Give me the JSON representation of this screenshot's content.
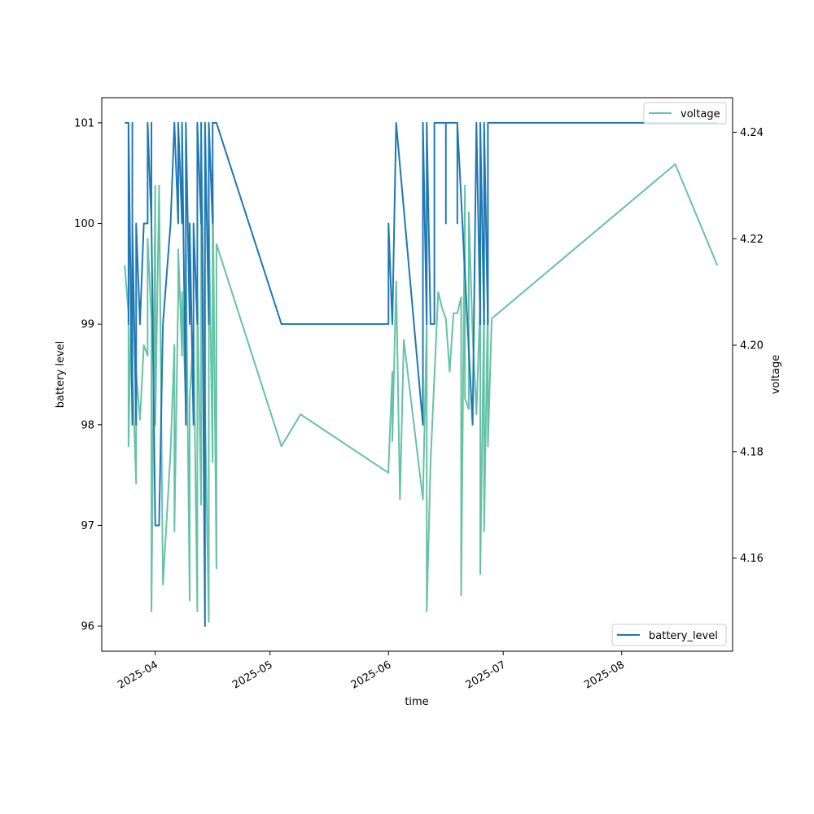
{
  "chart_data": {
    "type": "line",
    "title": "",
    "xlabel": "time",
    "ylabel_left": "battery level",
    "ylabel_right": "voltage",
    "x_ticks": [
      "2025-04",
      "2025-05",
      "2025-06",
      "2025-07",
      "2025-08"
    ],
    "y_left_ticks": [
      "96",
      "97",
      "98",
      "99",
      "100",
      "101"
    ],
    "y_right_ticks": [
      "4.16",
      "4.18",
      "4.20",
      "4.22",
      "4.24"
    ],
    "xlim": [
      "2025-03-18",
      "2025-08-30"
    ],
    "ylim_left": [
      95.75,
      101.25
    ],
    "ylim_right": [
      4.1425,
      4.2465
    ],
    "grid": false,
    "series": [
      {
        "name": "battery_level",
        "axis": "left",
        "color": "#1f77b4",
        "legend": "bottom-right",
        "points": [
          [
            "2025-03-24",
            101
          ],
          [
            "2025-03-25",
            101
          ],
          [
            "2025-03-25",
            99
          ],
          [
            "2025-03-25",
            101
          ],
          [
            "2025-03-26",
            98
          ],
          [
            "2025-03-26",
            101
          ],
          [
            "2025-03-26",
            100
          ],
          [
            "2025-03-27",
            98
          ],
          [
            "2025-03-27",
            100
          ],
          [
            "2025-03-28",
            99
          ],
          [
            "2025-03-29",
            100
          ],
          [
            "2025-03-30",
            100
          ],
          [
            "2025-03-30",
            101
          ],
          [
            "2025-03-31",
            100
          ],
          [
            "2025-03-31",
            101
          ],
          [
            "2025-03-31",
            100
          ],
          [
            "2025-04-01",
            97
          ],
          [
            "2025-04-02",
            97
          ],
          [
            "2025-04-03",
            99
          ],
          [
            "2025-04-05",
            100
          ],
          [
            "2025-04-06",
            101
          ],
          [
            "2025-04-07",
            100
          ],
          [
            "2025-04-07",
            101
          ],
          [
            "2025-04-08",
            100
          ],
          [
            "2025-04-08",
            101
          ],
          [
            "2025-04-09",
            98
          ],
          [
            "2025-04-09",
            101
          ],
          [
            "2025-04-10",
            99
          ],
          [
            "2025-04-10",
            100
          ],
          [
            "2025-04-11",
            98
          ],
          [
            "2025-04-11",
            100
          ],
          [
            "2025-04-12",
            99
          ],
          [
            "2025-04-12",
            101
          ],
          [
            "2025-04-13",
            100
          ],
          [
            "2025-04-13",
            101
          ],
          [
            "2025-04-14",
            96
          ],
          [
            "2025-04-14",
            101
          ],
          [
            "2025-04-15",
            99
          ],
          [
            "2025-04-15",
            101
          ],
          [
            "2025-04-16",
            100
          ],
          [
            "2025-04-16",
            101
          ],
          [
            "2025-04-17",
            101
          ],
          [
            "2025-05-04",
            99
          ],
          [
            "2025-06-01",
            99
          ],
          [
            "2025-06-01",
            100
          ],
          [
            "2025-06-02",
            99
          ],
          [
            "2025-06-03",
            101
          ],
          [
            "2025-06-10",
            98
          ],
          [
            "2025-06-10",
            101
          ],
          [
            "2025-06-11",
            99
          ],
          [
            "2025-06-11",
            101
          ],
          [
            "2025-06-12",
            99
          ],
          [
            "2025-06-13",
            99
          ],
          [
            "2025-06-13",
            101
          ],
          [
            "2025-06-14",
            101
          ],
          [
            "2025-06-16",
            101
          ],
          [
            "2025-06-16",
            100
          ],
          [
            "2025-06-16",
            101
          ],
          [
            "2025-06-19",
            101
          ],
          [
            "2025-06-19",
            100
          ],
          [
            "2025-06-19",
            101
          ],
          [
            "2025-06-23",
            98
          ],
          [
            "2025-06-24",
            101
          ],
          [
            "2025-06-25",
            99
          ],
          [
            "2025-06-25",
            101
          ],
          [
            "2025-06-26",
            99
          ],
          [
            "2025-06-26",
            101
          ],
          [
            "2025-06-27",
            99
          ],
          [
            "2025-06-27",
            101
          ],
          [
            "2025-08-26",
            101
          ]
        ]
      },
      {
        "name": "voltage",
        "axis": "right",
        "color": "#66c2a5",
        "legend": "top-right",
        "points": [
          [
            "2025-03-24",
            4.215
          ],
          [
            "2025-03-25",
            4.206
          ],
          [
            "2025-03-25",
            4.181
          ],
          [
            "2025-03-26",
            4.218
          ],
          [
            "2025-03-26",
            4.195
          ],
          [
            "2025-03-27",
            4.174
          ],
          [
            "2025-03-27",
            4.195
          ],
          [
            "2025-03-28",
            4.186
          ],
          [
            "2025-03-29",
            4.2
          ],
          [
            "2025-03-30",
            4.198
          ],
          [
            "2025-03-30",
            4.22
          ],
          [
            "2025-03-31",
            4.205
          ],
          [
            "2025-03-31",
            4.15
          ],
          [
            "2025-04-01",
            4.23
          ],
          [
            "2025-04-01",
            4.185
          ],
          [
            "2025-04-02",
            4.23
          ],
          [
            "2025-04-03",
            4.155
          ],
          [
            "2025-04-05",
            4.18
          ],
          [
            "2025-04-06",
            4.2
          ],
          [
            "2025-04-06",
            4.165
          ],
          [
            "2025-04-07",
            4.21
          ],
          [
            "2025-04-07",
            4.218
          ],
          [
            "2025-04-08",
            4.198
          ],
          [
            "2025-04-08",
            4.21
          ],
          [
            "2025-04-09",
            4.189
          ],
          [
            "2025-04-09",
            4.217
          ],
          [
            "2025-04-10",
            4.152
          ],
          [
            "2025-04-10",
            4.19
          ],
          [
            "2025-04-11",
            4.202
          ],
          [
            "2025-04-12",
            4.15
          ],
          [
            "2025-04-12",
            4.21
          ],
          [
            "2025-04-13",
            4.17
          ],
          [
            "2025-04-13",
            4.238
          ],
          [
            "2025-04-14",
            4.189
          ],
          [
            "2025-04-15",
            4.148
          ],
          [
            "2025-04-15",
            4.224
          ],
          [
            "2025-04-16",
            4.178
          ],
          [
            "2025-04-16",
            4.233
          ],
          [
            "2025-04-17",
            4.158
          ],
          [
            "2025-04-17",
            4.219
          ],
          [
            "2025-05-04",
            4.181
          ],
          [
            "2025-05-09",
            4.187
          ],
          [
            "2025-06-01",
            4.176
          ],
          [
            "2025-06-01",
            4.177
          ],
          [
            "2025-06-02",
            4.195
          ],
          [
            "2025-06-02",
            4.182
          ],
          [
            "2025-06-03",
            4.212
          ],
          [
            "2025-06-04",
            4.171
          ],
          [
            "2025-06-05",
            4.201
          ],
          [
            "2025-06-10",
            4.171
          ],
          [
            "2025-06-11",
            4.204
          ],
          [
            "2025-06-11",
            4.15
          ],
          [
            "2025-06-12",
            4.178
          ],
          [
            "2025-06-14",
            4.21
          ],
          [
            "2025-06-15",
            4.207
          ],
          [
            "2025-06-16",
            4.205
          ],
          [
            "2025-06-17",
            4.195
          ],
          [
            "2025-06-18",
            4.206
          ],
          [
            "2025-06-19",
            4.206
          ],
          [
            "2025-06-20",
            4.209
          ],
          [
            "2025-06-20",
            4.153
          ],
          [
            "2025-06-21",
            4.23
          ],
          [
            "2025-06-21",
            4.19
          ],
          [
            "2025-06-22",
            4.188
          ],
          [
            "2025-06-22",
            4.225
          ],
          [
            "2025-06-23",
            4.202
          ],
          [
            "2025-06-24",
            4.187
          ],
          [
            "2025-06-25",
            4.209
          ],
          [
            "2025-06-25",
            4.157
          ],
          [
            "2025-06-26",
            4.208
          ],
          [
            "2025-06-26",
            4.165
          ],
          [
            "2025-06-27",
            4.209
          ],
          [
            "2025-06-27",
            4.181
          ],
          [
            "2025-06-28",
            4.205
          ],
          [
            "2025-08-15",
            4.234
          ],
          [
            "2025-08-26",
            4.215
          ]
        ]
      }
    ]
  }
}
